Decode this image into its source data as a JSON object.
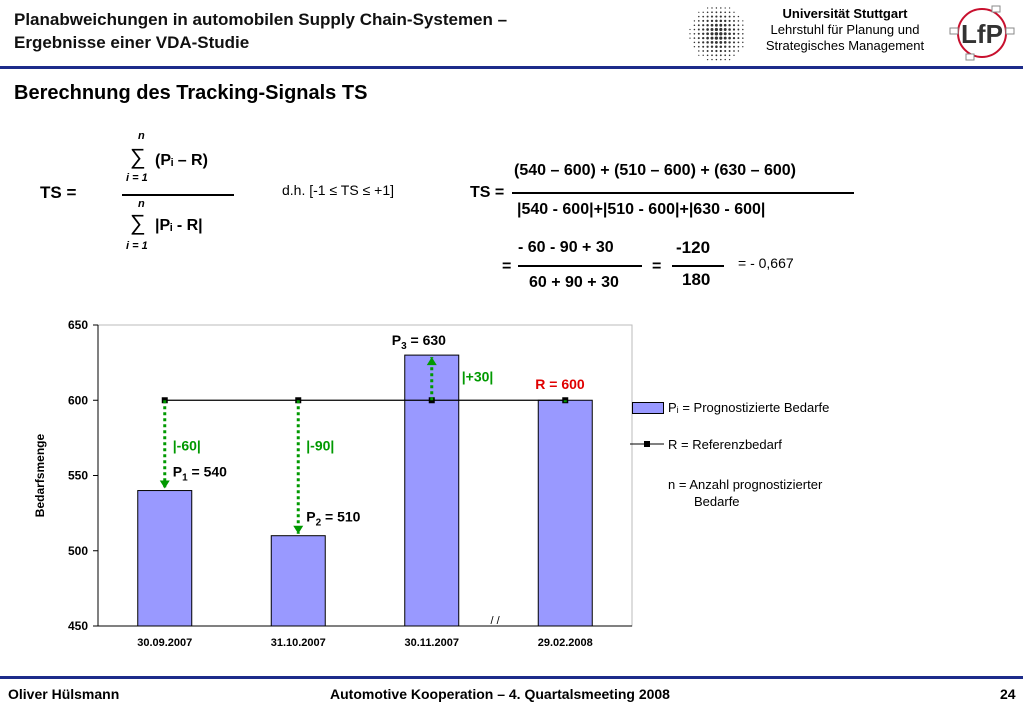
{
  "header": {
    "title_line1": "Planabweichungen in automobilen Supply Chain-Systemen –",
    "title_line2": "Ergebnisse einer VDA-Studie",
    "university": "Universität Stuttgart",
    "chair_line1": "Lehrstuhl für Planung und",
    "chair_line2": "Strategisches Management",
    "logo_text": "LfP"
  },
  "section_title": "Berechnung des Tracking-Signals TS",
  "formula": {
    "ts_label": "TS  =",
    "n": "n",
    "sum": "∑",
    "i_eq_1": "i = 1",
    "numerator": "(Pᵢ – R)",
    "denominator": "|Pᵢ - R|",
    "constraint": "d.h. [-1 ≤ TS ≤ +1]",
    "ts_rhs_label": "TS =",
    "num_expanded": "(540 – 600) + (510 – 600) + (630 – 600)",
    "den_expanded": "|540 - 600|+|510 - 600|+|630 - 600|",
    "eq_sign": "=",
    "num2": "- 60 - 90 + 30",
    "den2": "60 + 90 + 30",
    "num3": "-120",
    "den3": "180",
    "result": "= - 0,667"
  },
  "chart_data": {
    "type": "bar",
    "categories": [
      "30.09.2007",
      "31.10.2007",
      "30.11.2007",
      "29.02.2008"
    ],
    "series": [
      {
        "name": "Pᵢ = Prognostizierte Bedarfe",
        "values": [
          540,
          510,
          630,
          600
        ]
      },
      {
        "name": "R = Referenzbedarf",
        "values": [
          600,
          600,
          600,
          600
        ]
      }
    ],
    "ylabel": "Bedarfsmenge",
    "ylim": [
      450,
      650
    ],
    "yticks": [
      "450",
      "500",
      "550",
      "600",
      "650"
    ],
    "bar_color": "#9999ff",
    "deviation_color": "#009900",
    "reference_color": "#000000",
    "annotations": {
      "p1": "P₁ = 540",
      "p2": "P₂ = 510",
      "p3": "P₃ = 630",
      "d1": "|-60|",
      "d2": "|-90|",
      "d3": "|+30|",
      "r_label": "R = 600",
      "axis_break": "/ /"
    },
    "legend": {
      "bars": "Pᵢ = Prognostizierte Bedarfe",
      "line": "R = Referenzbedarf",
      "n_line1": "n = Anzahl prognostizierter",
      "n_line2": "Bedarfe"
    }
  },
  "footer": {
    "author": "Oliver Hülsmann",
    "event": "Automotive Kooperation – 4. Quartalsmeeting 2008",
    "page": "24"
  }
}
